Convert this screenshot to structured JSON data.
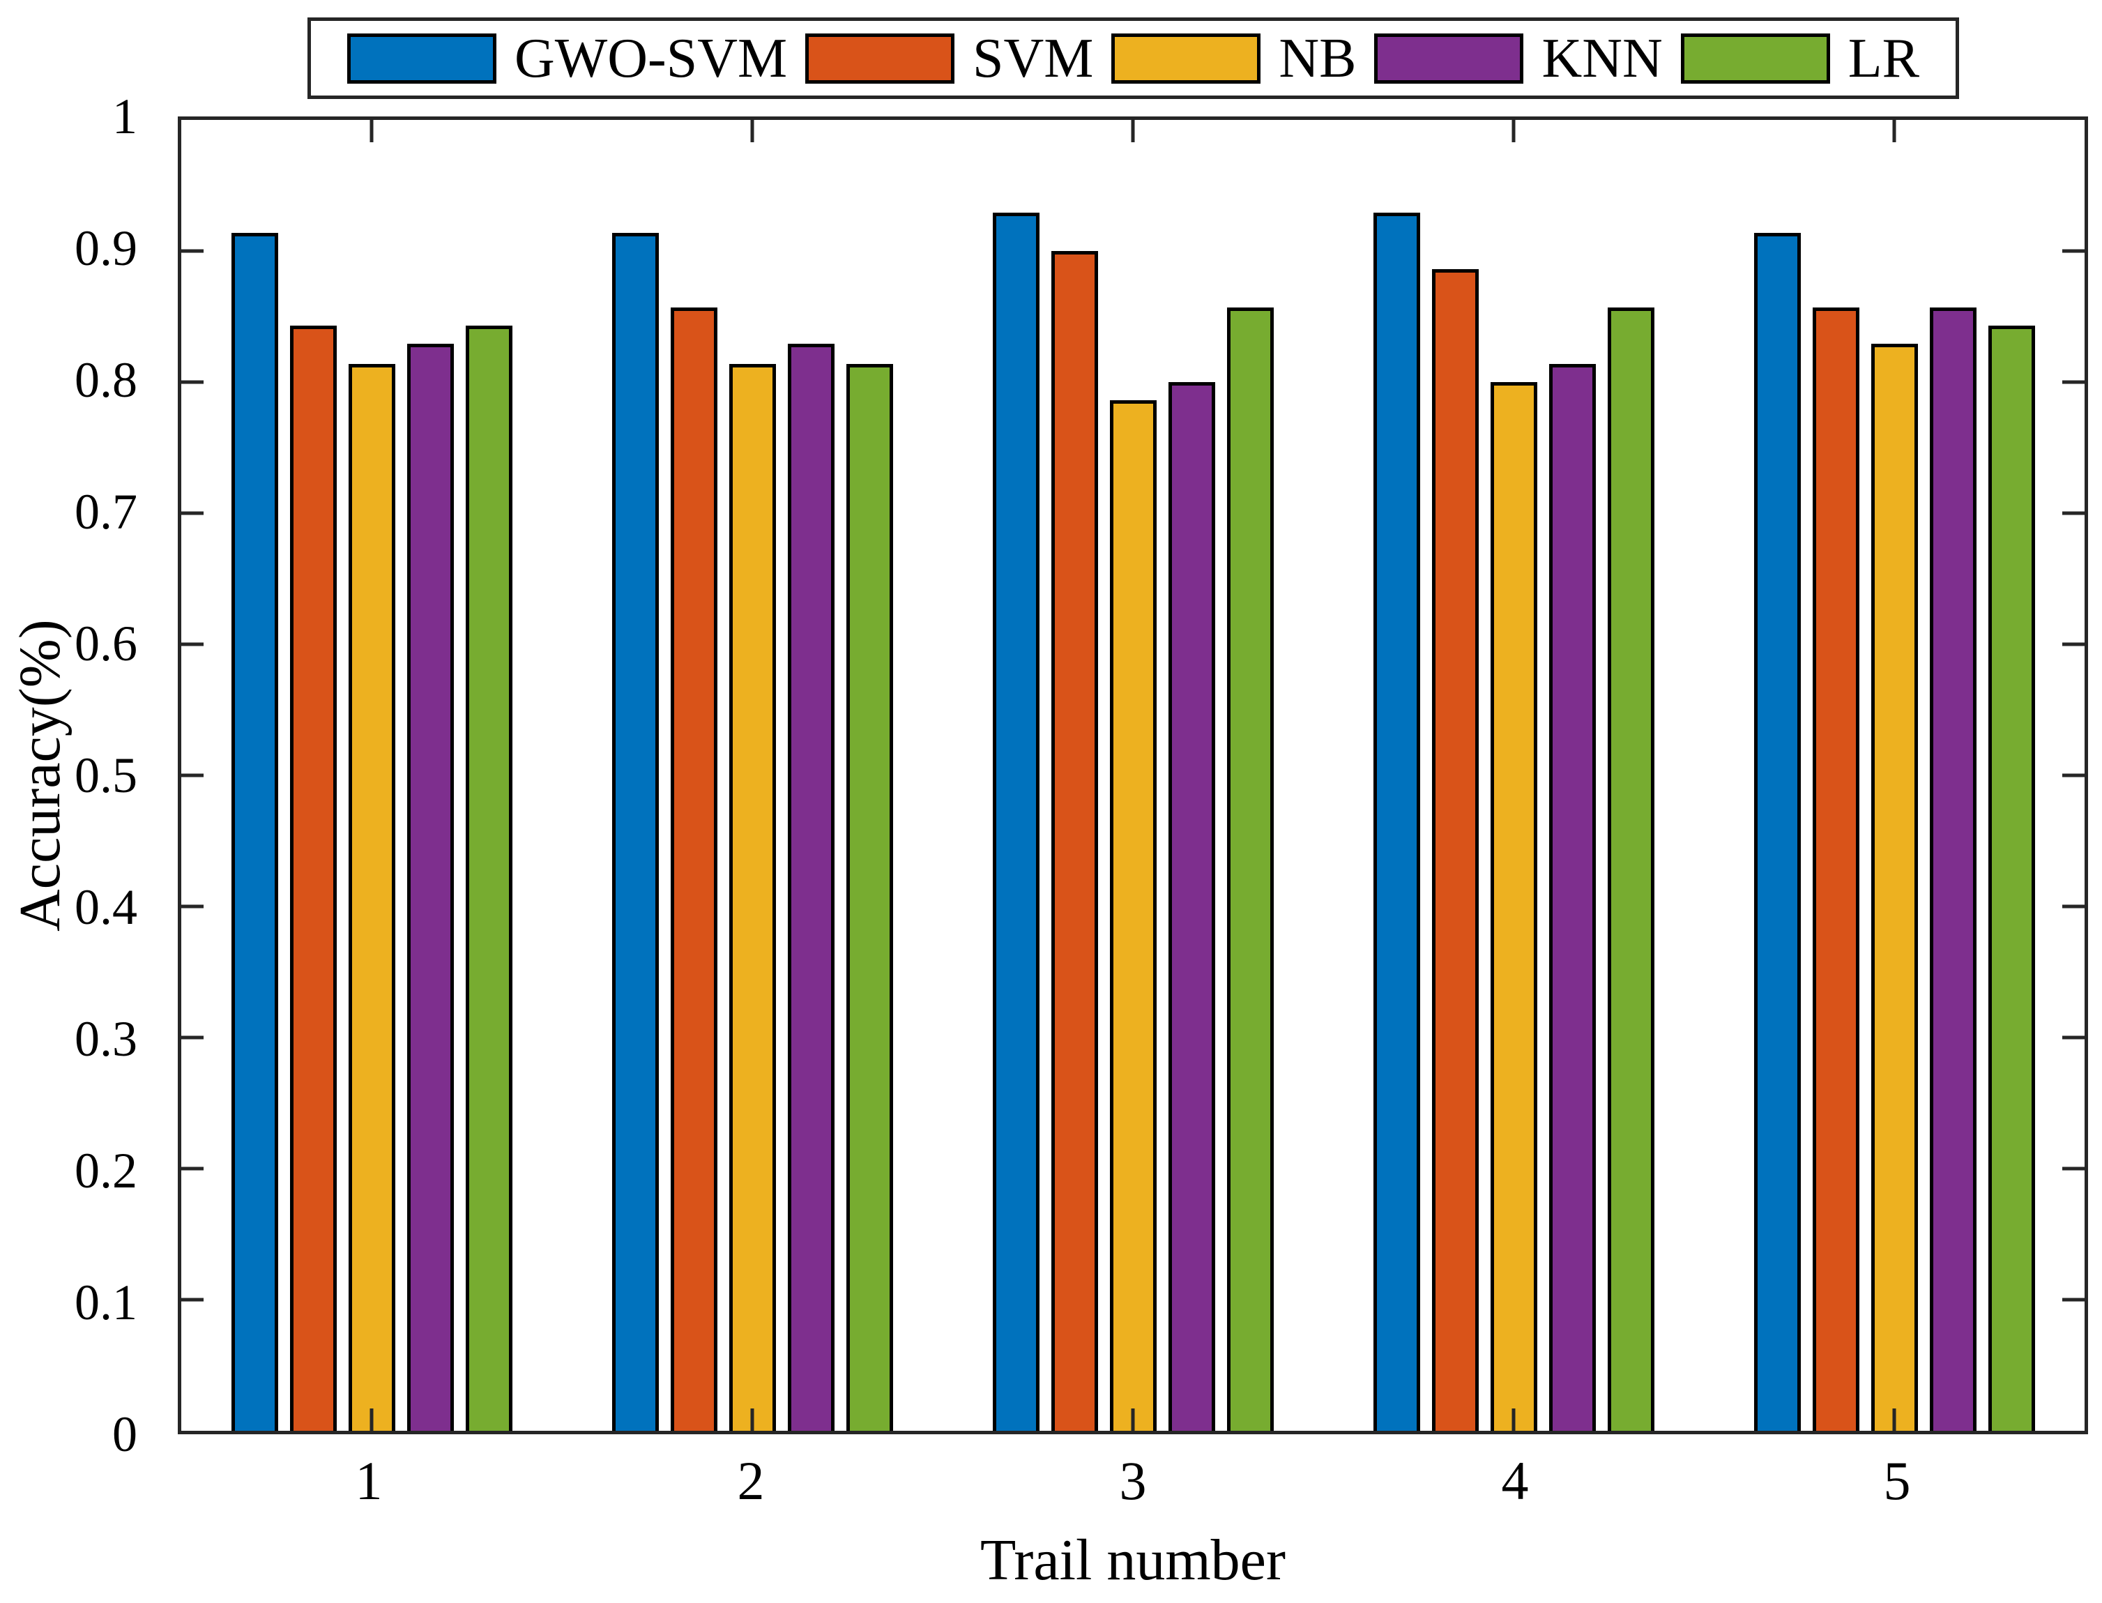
{
  "chart_data": {
    "type": "bar",
    "title": "",
    "xlabel": "Trail number",
    "ylabel": "Accuracy(%)",
    "categories": [
      "1",
      "2",
      "3",
      "4",
      "5"
    ],
    "series": [
      {
        "name": "GWO-SVM",
        "color": "#0072BD",
        "values": [
          0.914,
          0.914,
          0.929,
          0.929,
          0.914
        ]
      },
      {
        "name": "SVM",
        "color": "#D95319",
        "values": [
          0.843,
          0.857,
          0.9,
          0.886,
          0.857
        ]
      },
      {
        "name": "NB",
        "color": "#EDB120",
        "values": [
          0.814,
          0.814,
          0.786,
          0.8,
          0.829
        ]
      },
      {
        "name": "KNN",
        "color": "#7E2F8E",
        "values": [
          0.829,
          0.829,
          0.8,
          0.814,
          0.857
        ]
      },
      {
        "name": "LR",
        "color": "#77AC30",
        "values": [
          0.843,
          0.814,
          0.857,
          0.857,
          0.843
        ]
      }
    ],
    "ylim": [
      0,
      1
    ],
    "yticks": [
      "0",
      "0.1",
      "0.2",
      "0.3",
      "0.4",
      "0.5",
      "0.6",
      "0.7",
      "0.8",
      "0.9",
      "1"
    ],
    "grid": false,
    "legend_position": "top",
    "axis_color": "#262626",
    "bar_edge_color": "#000000"
  }
}
